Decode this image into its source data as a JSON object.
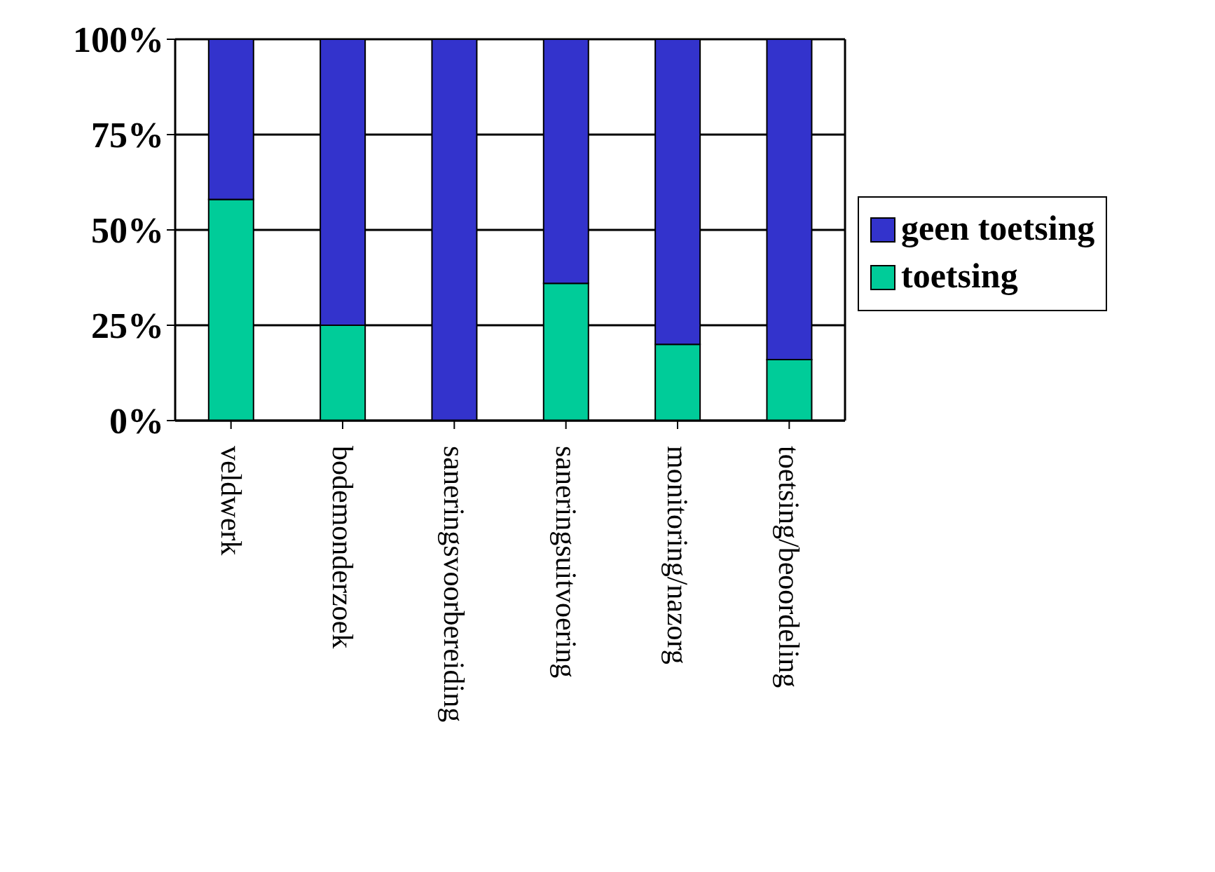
{
  "chart_data": {
    "type": "bar",
    "stacked": true,
    "categories": [
      "veldwerk",
      "bodemonderzoek",
      "saneringsvoorbereiding",
      "saneringsuitvoering",
      "monitoring/nazorg",
      "toetsing/beoordeling"
    ],
    "series": [
      {
        "name": "toetsing",
        "color": "#00cc99",
        "values": [
          58,
          25,
          0,
          36,
          20,
          16
        ]
      },
      {
        "name": "geen toetsing",
        "color": "#3333cc",
        "values": [
          42,
          75,
          100,
          64,
          80,
          84
        ]
      }
    ],
    "ylim": [
      0,
      100
    ],
    "yticks": [
      {
        "value": 0,
        "label": "0%"
      },
      {
        "value": 25,
        "label": "25%"
      },
      {
        "value": 50,
        "label": "50%"
      },
      {
        "value": 75,
        "label": "75%"
      },
      {
        "value": 100,
        "label": "100%"
      }
    ],
    "grid": "y",
    "legend": "right"
  }
}
